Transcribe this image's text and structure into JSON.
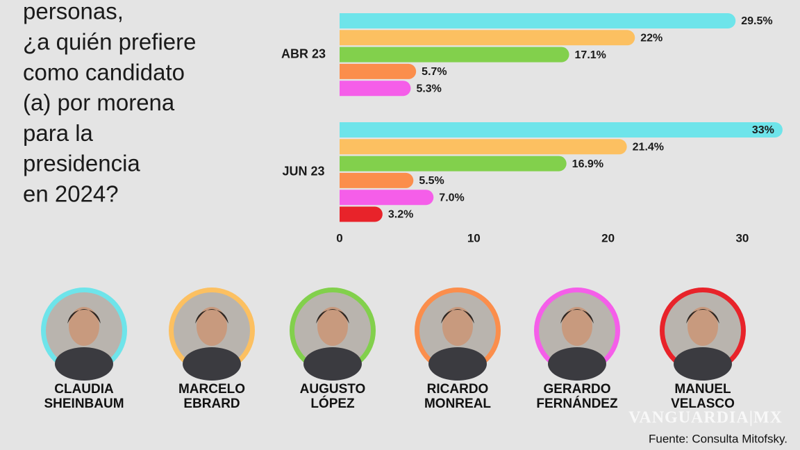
{
  "chart_data": {
    "type": "bar",
    "orientation": "horizontal",
    "title_lines": [
      "personas,",
      "¿a quién prefiere",
      "como candidato",
      "(a) por morena",
      "para la",
      "presidencia",
      "en 2024?"
    ],
    "categories": [
      "ABR 23",
      "JUN 23"
    ],
    "series": [
      {
        "name": "CLAUDIA SHEINBAUM",
        "color": "#6ee4ea",
        "values": [
          29.5,
          33
        ],
        "value_labels": [
          "29.5%",
          "33%"
        ]
      },
      {
        "name": "MARCELO EBRARD",
        "color": "#fcc061",
        "values": [
          22,
          21.4
        ],
        "value_labels": [
          "22%",
          "21.4%"
        ]
      },
      {
        "name": "AUGUSTO LÓPEZ",
        "color": "#82d04c",
        "values": [
          17.1,
          16.9
        ],
        "value_labels": [
          "17.1%",
          "16.9%"
        ]
      },
      {
        "name": "RICARDO MONREAL",
        "color": "#fb8e4c",
        "values": [
          5.7,
          5.5
        ],
        "value_labels": [
          "5.7%",
          "5.5%"
        ]
      },
      {
        "name": "GERARDO FERNÁNDEZ",
        "color": "#f55ee9",
        "values": [
          5.3,
          7.0
        ],
        "value_labels": [
          "5.3%",
          "7.0%"
        ]
      },
      {
        "name": "MANUEL VELASCO",
        "color": "#e8232a",
        "values": [
          null,
          3.2
        ],
        "value_labels": [
          null,
          "3.2%"
        ]
      }
    ],
    "xlim": [
      0,
      33.5
    ],
    "xticks": [
      0,
      10,
      20,
      30
    ],
    "source": "Fuente: Consulta Mitofsky.",
    "watermark": "VANGUARDIA|MX"
  }
}
